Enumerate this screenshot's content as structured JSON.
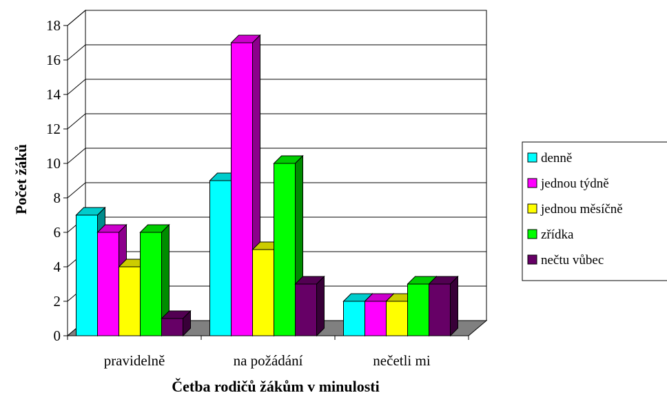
{
  "chart_data": {
    "type": "bar",
    "style": "3d-clustered-column",
    "xlabel": "Četba rodičů žákům v minulosti",
    "ylabel": "Počet žáků",
    "categories": [
      "pravidelně",
      "na požádání",
      "nečetli mi"
    ],
    "ylim": [
      0,
      18
    ],
    "yticks": [
      0,
      2,
      4,
      6,
      8,
      10,
      12,
      14,
      16,
      18
    ],
    "grid": true,
    "legend_position": "right",
    "series": [
      {
        "name": "denně",
        "values": [
          7,
          9,
          2
        ],
        "color": "#00FFFF"
      },
      {
        "name": "jednou týdně",
        "values": [
          6,
          17,
          2
        ],
        "color": "#FF00FF"
      },
      {
        "name": "jednou měsíčně",
        "values": [
          4,
          5,
          2
        ],
        "color": "#FFFF00"
      },
      {
        "name": "zřídka",
        "values": [
          6,
          10,
          3
        ],
        "color": "#00FF00"
      },
      {
        "name": "nečtu vůbec",
        "values": [
          1,
          3,
          3
        ],
        "color": "#660066"
      }
    ]
  }
}
